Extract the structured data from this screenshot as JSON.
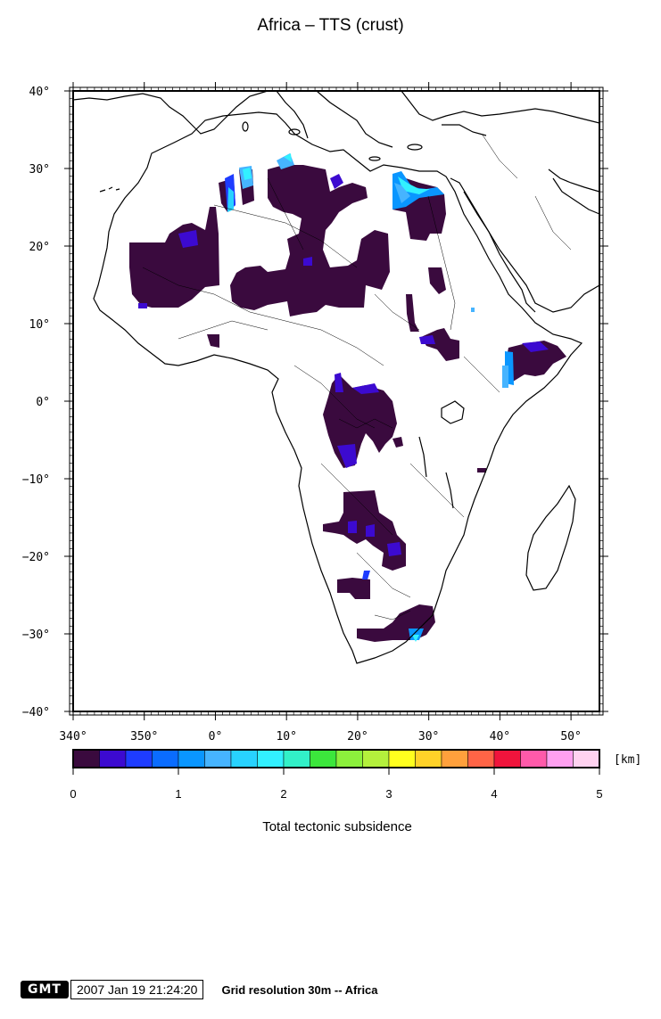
{
  "title": "Africa – TTS (crust)",
  "subtitle": "Total tectonic subsidence",
  "unit_label": "[km]",
  "lat_labels": [
    "40°",
    "30°",
    "20°",
    "10°",
    "0°",
    "-10°",
    "-20°",
    "-30°",
    "-40°"
  ],
  "lon_labels": [
    "340°",
    "350°",
    "0°",
    "10°",
    "20°",
    "30°",
    "40°",
    "50°"
  ],
  "colorbar": {
    "ticks": [
      "0",
      "1",
      "2",
      "3",
      "4",
      "5"
    ],
    "range": [
      0,
      5
    ],
    "colors": [
      "#3a0a3e",
      "#3c0ad0",
      "#1e3cff",
      "#0a6cff",
      "#0a96ff",
      "#46b4ff",
      "#28d2ff",
      "#32f0ff",
      "#32f0c8",
      "#3ce63c",
      "#8cf03c",
      "#b4f03c",
      "#ffff1e",
      "#ffd228",
      "#ffa03c",
      "#ff6446",
      "#f0143c",
      "#ff5aaa",
      "#ffa0f0",
      "#ffd2f0"
    ]
  },
  "footer": {
    "logo": "GMT",
    "timestamp": "2007 Jan 19 21:24:20",
    "grid_resolution": "Grid resolution 30m -- Africa"
  },
  "map": {
    "lon_range": [
      340,
      54
    ],
    "lat_range": [
      -40,
      40
    ],
    "land_color": "#ffffff",
    "coast_color": "#000000",
    "subsidence_base_color": "#3a0a3e"
  }
}
